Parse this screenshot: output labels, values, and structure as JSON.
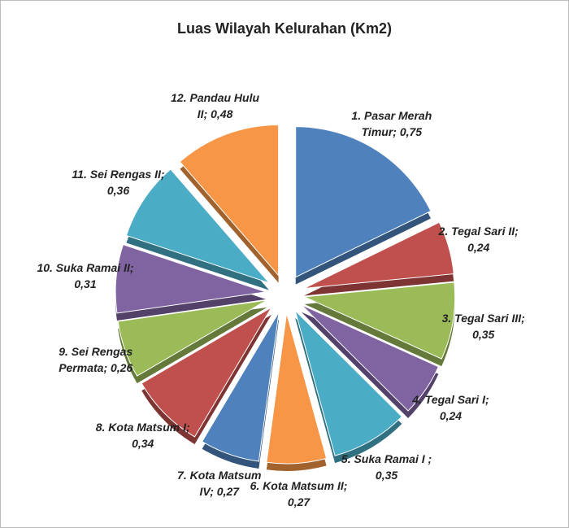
{
  "chart_data": {
    "type": "pie",
    "title": "Luas Wilayah Kelurahan (Km2)",
    "labels": [
      "1. Pasar Merah Timur; 0,75",
      "2. Tegal Sari II; 0,24",
      "3. Tegal Sari III; 0,35",
      "4. Tegal Sari I; 0,24",
      "5. Suka Ramai I ; 0,35",
      "6. Kota Matsum II; 0,27",
      "7. Kota Matsum IV; 0,27",
      "8. Kota Matsum I; 0,34",
      "9. Sei Rengas Permata; 0,26",
      "10. Suka Ramai II; 0,31",
      "11. Sei Rengas II; 0,36",
      "12. Pandau Hulu II; 0,48"
    ],
    "values": [
      0.75,
      0.24,
      0.35,
      0.24,
      0.35,
      0.27,
      0.27,
      0.34,
      0.26,
      0.31,
      0.36,
      0.48
    ],
    "colors": [
      "#4f81bd",
      "#c0504d",
      "#9bbb59",
      "#8064a2",
      "#4bacc6",
      "#f79646",
      "#4f81bd",
      "#c0504d",
      "#9bbb59",
      "#8064a2",
      "#4bacc6",
      "#f79646"
    ]
  }
}
